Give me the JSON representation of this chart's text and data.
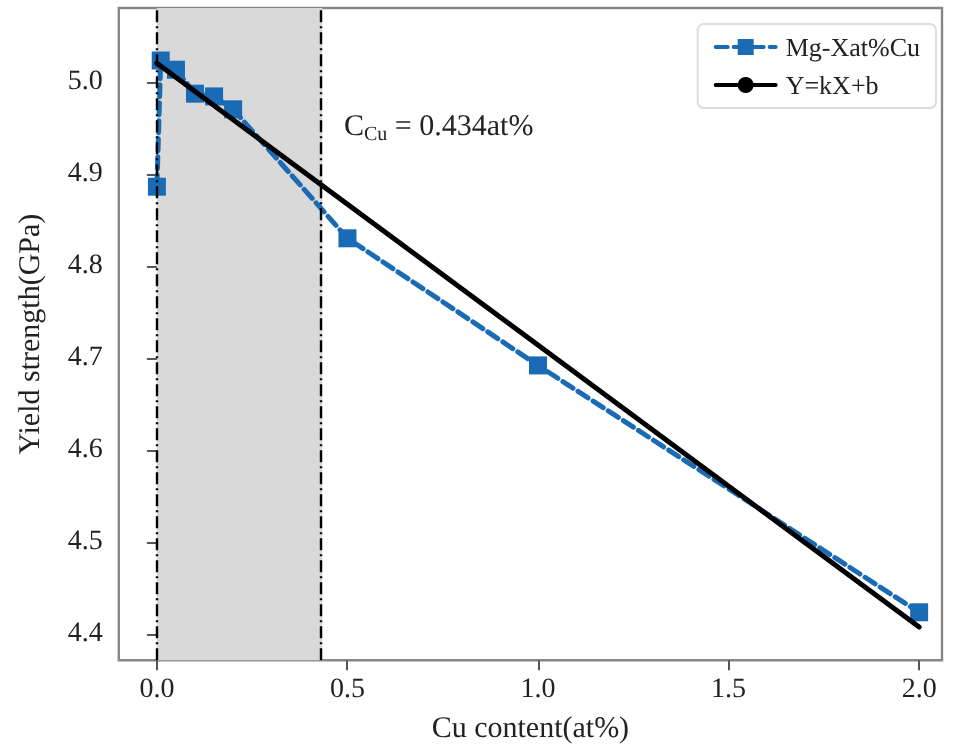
{
  "chart_data": {
    "type": "line",
    "xlabel": "Cu content(at%)",
    "ylabel": "Yield strength(GPa)",
    "xlim": [
      -0.1,
      2.06
    ],
    "xticks": [
      {
        "value": 0,
        "label": "0.0"
      },
      0.5,
      {
        "value": 1,
        "label": "1.0"
      },
      1.5,
      {
        "value": 2,
        "label": "2.0"
      }
    ],
    "ylim": [
      4.372,
      5.08
    ],
    "yticks": [
      4.4,
      4.5,
      4.6,
      4.7,
      4.8,
      4.9,
      {
        "value": 5,
        "label": "5.0"
      }
    ],
    "series": [
      {
        "name": "Mg-Xat%Cu",
        "color": "#1a6bb5",
        "x": [
          0,
          0.01,
          0.05,
          0.1,
          0.15,
          0.2,
          0.5,
          1.0,
          2.0
        ],
        "values": [
          4.886,
          5.023,
          5.013,
          4.987,
          4.984,
          4.97,
          4.83,
          4.692,
          4.424
        ],
        "marker": "square",
        "line_style": "dashed"
      },
      {
        "name": "Y=kX+b",
        "color": "#000000",
        "x": [
          0,
          2.0
        ],
        "values": [
          5.02,
          4.408
        ],
        "marker": "none",
        "line_style": "solid"
      }
    ],
    "bands": [
      {
        "axis": "x",
        "from": 0,
        "to": 0.434,
        "color": "#d9d9d9"
      }
    ],
    "ref_lines": [
      {
        "axis": "x",
        "value": 0,
        "color": "#000000",
        "line_style": "dashed"
      },
      {
        "axis": "x",
        "value": 0.434,
        "color": "#000000",
        "line_style": "dashed"
      }
    ],
    "annotations": [
      "C$_{Cu}$ = 0.434at%"
    ],
    "grid": false,
    "legend": "top right"
  }
}
